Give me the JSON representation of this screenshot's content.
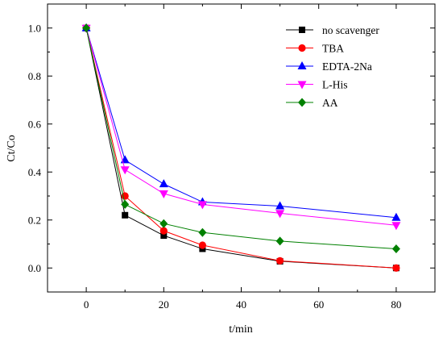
{
  "chart_data": {
    "type": "line",
    "title": "",
    "xlabel": "t/min",
    "ylabel": "Ct/Co",
    "x": [
      0,
      10,
      20,
      30,
      50,
      80
    ],
    "xlim": [
      -10,
      90
    ],
    "ylim": [
      -0.1,
      1.1
    ],
    "xticks": [
      0,
      20,
      40,
      60,
      80
    ],
    "yticks": [
      0.0,
      0.2,
      0.4,
      0.6,
      0.8,
      1.0
    ],
    "xtick_labels": [
      "0",
      "20",
      "40",
      "60",
      "80"
    ],
    "ytick_labels": [
      "0.0",
      "0.2",
      "0.4",
      "0.6",
      "0.8",
      "1.0"
    ],
    "grid": false,
    "legend_position": "top-right",
    "series": [
      {
        "name": "no scavenger",
        "color": "#000000",
        "marker": "square",
        "values": [
          1.0,
          0.22,
          0.135,
          0.08,
          0.028,
          0.0
        ]
      },
      {
        "name": "TBA",
        "color": "#ff0000",
        "marker": "circle",
        "values": [
          1.0,
          0.3,
          0.155,
          0.095,
          0.03,
          0.0
        ]
      },
      {
        "name": "EDTA-2Na",
        "color": "#0000ff",
        "marker": "triangle-up",
        "values": [
          1.0,
          0.45,
          0.35,
          0.275,
          0.258,
          0.21
        ]
      },
      {
        "name": "L-His",
        "color": "#ff00ff",
        "marker": "triangle-down",
        "values": [
          1.0,
          0.41,
          0.31,
          0.265,
          0.228,
          0.178
        ]
      },
      {
        "name": "AA",
        "color": "#008000",
        "marker": "diamond",
        "values": [
          1.0,
          0.265,
          0.185,
          0.148,
          0.112,
          0.08
        ]
      }
    ]
  }
}
